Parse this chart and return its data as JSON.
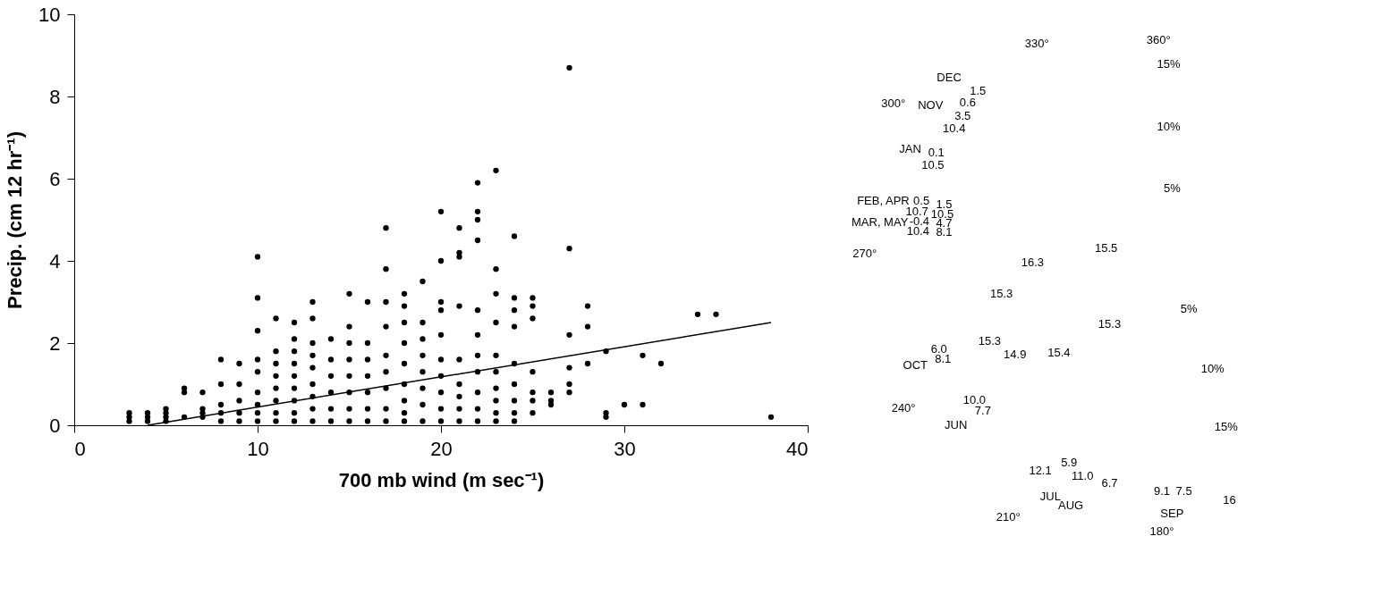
{
  "chart_data": [
    {
      "type": "scatter",
      "xlabel": "700 mb wind (m sec⁻¹)",
      "ylabel": "Precip. (cm 12 hr⁻¹)",
      "xlim": [
        0,
        40
      ],
      "ylim": [
        0,
        10
      ],
      "xticks": [
        0,
        10,
        20,
        30,
        40
      ],
      "yticks": [
        0,
        2,
        4,
        6,
        8,
        10
      ],
      "grid": false,
      "series": [
        {
          "type": "scatter",
          "color": "#000000",
          "marker": "circle",
          "x": [
            3,
            3,
            3,
            4,
            4,
            4,
            5,
            5,
            5,
            5,
            6,
            6,
            6,
            7,
            7,
            7,
            7,
            8,
            8,
            8,
            8,
            8,
            9,
            9,
            9,
            9,
            9,
            10,
            10,
            10,
            10,
            10,
            10,
            10,
            10,
            10,
            11,
            11,
            11,
            11,
            11,
            11,
            11,
            11,
            12,
            12,
            12,
            12,
            12,
            12,
            12,
            12,
            12,
            13,
            13,
            13,
            13,
            13,
            13,
            13,
            13,
            13,
            14,
            14,
            14,
            14,
            14,
            14,
            15,
            15,
            15,
            15,
            15,
            15,
            15,
            15,
            16,
            16,
            16,
            16,
            16,
            16,
            16,
            17,
            17,
            17,
            17,
            17,
            17,
            17,
            17,
            17,
            18,
            18,
            18,
            18,
            18,
            18,
            18,
            18,
            18,
            19,
            19,
            19,
            19,
            19,
            19,
            19,
            19,
            20,
            20,
            20,
            20,
            20,
            20,
            20,
            20,
            20,
            20,
            21,
            21,
            21,
            21,
            21,
            21,
            21,
            21,
            21,
            22,
            22,
            22,
            22,
            22,
            22,
            22,
            22,
            22,
            22,
            22,
            23,
            23,
            23,
            23,
            23,
            23,
            23,
            23,
            23,
            23,
            24,
            24,
            24,
            24,
            24,
            24,
            24,
            24,
            24,
            25,
            25,
            25,
            25,
            25,
            25,
            25,
            26,
            26,
            26,
            27,
            27,
            27,
            27,
            27,
            27,
            28,
            28,
            28,
            29,
            29,
            29,
            30,
            31,
            31,
            32,
            34,
            35,
            38
          ],
          "values": [
            0.1,
            0.2,
            0.3,
            0.1,
            0.2,
            0.3,
            0.1,
            0.2,
            0.3,
            0.4,
            0.2,
            0.8,
            0.9,
            0.2,
            0.3,
            0.4,
            0.8,
            0.1,
            0.3,
            0.5,
            1.0,
            1.6,
            0.1,
            0.3,
            0.6,
            1.0,
            1.5,
            0.1,
            0.3,
            0.5,
            0.8,
            1.3,
            1.6,
            2.3,
            3.1,
            4.1,
            0.1,
            0.3,
            0.6,
            0.9,
            1.2,
            1.5,
            1.8,
            2.6,
            0.1,
            0.3,
            0.6,
            0.9,
            1.2,
            1.5,
            1.8,
            2.1,
            2.5,
            0.1,
            0.4,
            0.7,
            1.0,
            1.4,
            1.7,
            2.0,
            2.6,
            3.0,
            0.1,
            0.4,
            0.8,
            1.2,
            1.6,
            2.1,
            0.1,
            0.4,
            0.8,
            1.2,
            1.6,
            2.0,
            2.4,
            3.2,
            0.1,
            0.4,
            0.8,
            1.2,
            1.6,
            2.0,
            3.0,
            0.1,
            0.4,
            0.9,
            1.3,
            1.7,
            2.4,
            3.0,
            3.8,
            4.8,
            0.1,
            0.3,
            0.6,
            1.0,
            1.5,
            2.0,
            2.5,
            2.9,
            3.2,
            0.1,
            0.5,
            0.9,
            1.3,
            1.7,
            2.1,
            2.5,
            3.5,
            0.1,
            0.4,
            0.8,
            1.2,
            1.6,
            2.2,
            2.8,
            3.0,
            4.0,
            5.2,
            0.1,
            0.4,
            0.7,
            1.0,
            1.6,
            2.9,
            4.1,
            4.2,
            4.8,
            0.1,
            0.4,
            0.8,
            1.3,
            1.7,
            2.2,
            2.8,
            4.5,
            5.0,
            5.2,
            5.9,
            0.1,
            0.3,
            0.6,
            0.9,
            1.3,
            1.7,
            2.5,
            3.2,
            3.8,
            6.2,
            0.1,
            0.3,
            0.6,
            1.0,
            1.5,
            2.4,
            2.8,
            3.1,
            4.6,
            0.3,
            0.6,
            0.8,
            1.3,
            2.6,
            2.9,
            3.1,
            0.5,
            0.6,
            0.8,
            0.8,
            1.0,
            1.4,
            2.2,
            4.3,
            8.7,
            1.5,
            2.4,
            2.9,
            0.2,
            0.3,
            1.8,
            0.5,
            0.5,
            1.7,
            1.5,
            2.7,
            2.7,
            0.2
          ]
        },
        {
          "type": "line",
          "color": "#000000",
          "x": [
            4,
            38
          ],
          "values": [
            0,
            2.5
          ]
        }
      ]
    },
    {
      "type": "other",
      "annotations": [
        "360°",
        "330°",
        "300°",
        "270°",
        "240°",
        "210°",
        "180°",
        "15%",
        "10%",
        "5%",
        "5%",
        "10%",
        "15%",
        "16",
        "DEC",
        "1.5",
        "0.6",
        "NOV",
        "3.5",
        "10.4",
        "JAN",
        "0.1",
        "10.5",
        "FEB, APR",
        "0.5",
        "1.5",
        "10.7",
        "10.5",
        "MAR, MAY",
        "-0.4",
        "4.7",
        "10.4",
        "8.1",
        "OCT",
        "6.0",
        "8.1",
        "JUN",
        "10.0",
        "7.7",
        "JUL",
        "12.1",
        "5.9",
        "AUG",
        "11.0",
        "6.7",
        "SEP",
        "9.1",
        "7.5",
        "15.5",
        "16.3",
        "15.3",
        "15.3",
        "14.9",
        "15.4",
        "15.3"
      ]
    }
  ]
}
